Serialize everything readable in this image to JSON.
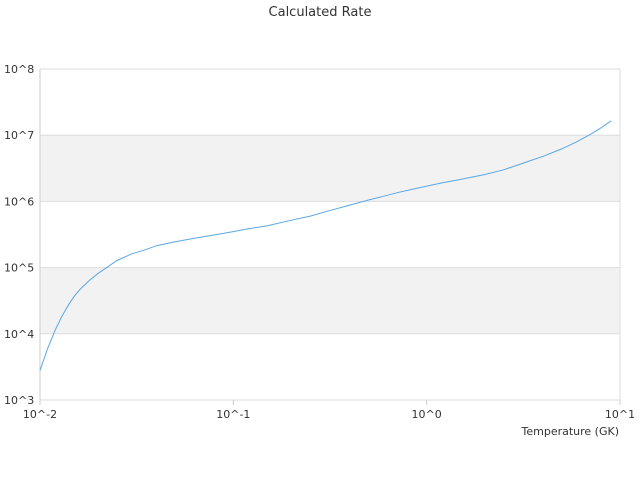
{
  "chart_data": {
    "type": "line",
    "title": "Calculated Rate",
    "xlabel": "Temperature (GK)",
    "ylabel": "",
    "x_scale": "log",
    "y_scale": "log",
    "xlim": [
      0.01,
      10
    ],
    "ylim": [
      1000,
      100000000
    ],
    "x_ticks": [
      {
        "value": 0.01,
        "label": "10^-2"
      },
      {
        "value": 0.1,
        "label": "10^-1"
      },
      {
        "value": 1,
        "label": "10^0"
      },
      {
        "value": 10,
        "label": "10^1"
      }
    ],
    "y_ticks": [
      {
        "value": 1000,
        "label": "10^3"
      },
      {
        "value": 10000,
        "label": "10^4"
      },
      {
        "value": 100000,
        "label": "10^5"
      },
      {
        "value": 1000000,
        "label": "10^6"
      },
      {
        "value": 10000000,
        "label": "10^7"
      },
      {
        "value": 100000000,
        "label": "10^8"
      }
    ],
    "grid": true,
    "alternating_bands": true,
    "legend": "none",
    "colors": {
      "line": "#5aa7e6",
      "band": "#f2f2f2",
      "grid": "#dddddd",
      "axis": "#cccccc"
    },
    "series": [
      {
        "x": [
          0.01,
          0.011,
          0.012,
          0.013,
          0.014,
          0.015,
          0.016,
          0.018,
          0.02,
          0.022,
          0.025,
          0.03,
          0.035,
          0.04,
          0.05,
          0.06,
          0.07,
          0.08,
          0.1,
          0.12,
          0.15,
          0.2,
          0.25,
          0.3,
          0.4,
          0.5,
          0.6,
          0.7,
          0.8,
          1.0,
          1.2,
          1.5,
          2.0,
          2.5,
          3.0,
          3.5,
          4.0,
          5.0,
          6.0,
          7.0,
          8.0,
          9.0
        ],
        "y": [
          2800,
          6200,
          11500,
          18500,
          27000,
          36500,
          46000,
          64000,
          82000,
          99000,
          128000,
          162000,
          186000,
          214000,
          245000,
          270000,
          293000,
          312000,
          350000,
          385000,
          430000,
          520000,
          600000,
          700000,
          880000,
          1050000,
          1200000,
          1350000,
          1470000,
          1700000,
          1900000,
          2150000,
          2550000,
          3000000,
          3600000,
          4200000,
          4800000,
          6200000,
          8000000,
          10200000,
          13000000,
          16500000
        ]
      }
    ]
  }
}
